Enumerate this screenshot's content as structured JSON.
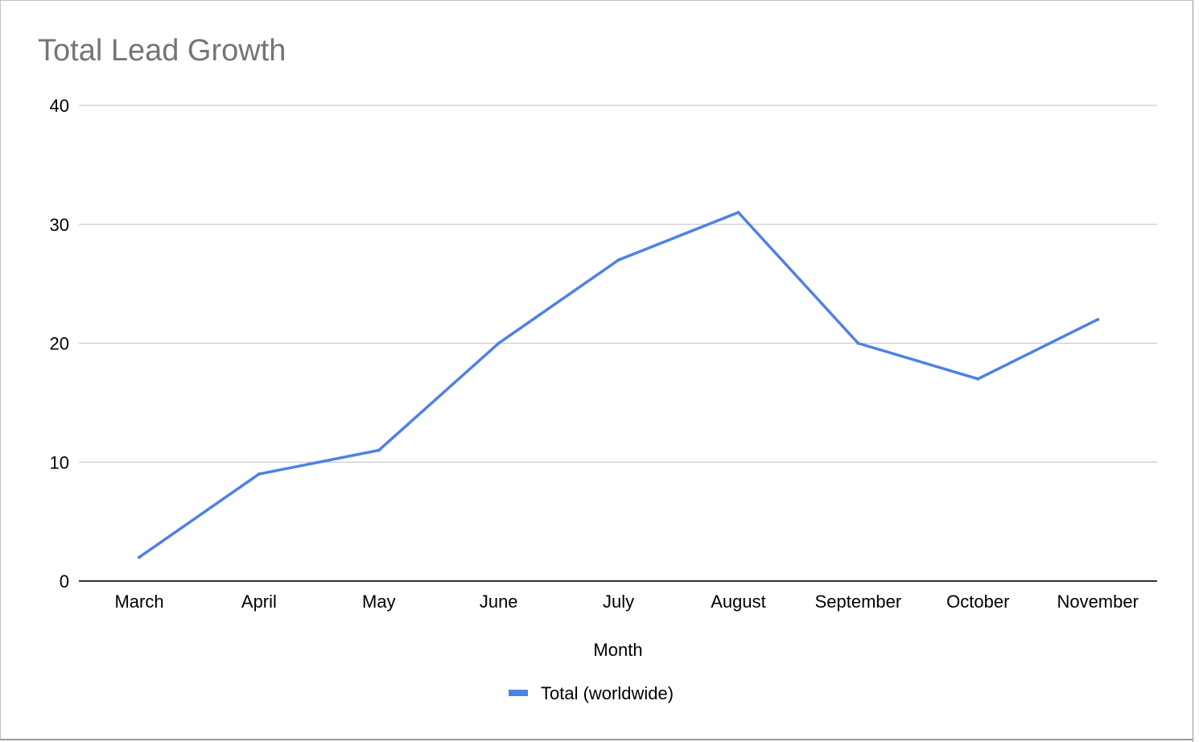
{
  "chart_data": {
    "type": "line",
    "title": "Total Lead Growth",
    "xlabel": "Month",
    "ylabel": "",
    "categories": [
      "March",
      "April",
      "May",
      "June",
      "July",
      "August",
      "September",
      "October",
      "November"
    ],
    "series": [
      {
        "name": "Total (worldwide)",
        "values": [
          2,
          9,
          11,
          20,
          27,
          31,
          20,
          17,
          22
        ],
        "color": "#4f81e6"
      }
    ],
    "ylim": [
      0,
      40
    ],
    "yticks": [
      "0",
      "10",
      "20",
      "30",
      "40"
    ],
    "grid": true,
    "legend_position": "bottom"
  }
}
